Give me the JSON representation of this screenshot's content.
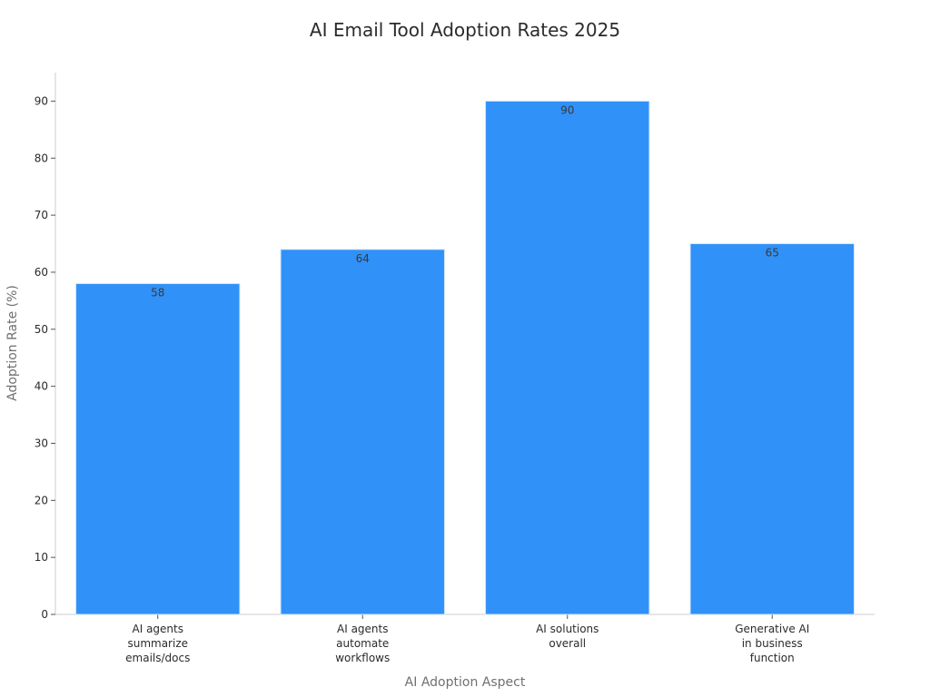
{
  "chart_data": {
    "type": "bar",
    "title": "AI Email Tool Adoption Rates 2025",
    "xlabel": "AI Adoption Aspect",
    "ylabel": "Adoption Rate (%)",
    "categories": [
      [
        "AI agents",
        "summarize",
        "emails/docs"
      ],
      [
        "AI agents",
        "automate",
        "workflows"
      ],
      [
        "AI solutions",
        "overall"
      ],
      [
        "Generative AI",
        "in business",
        "function"
      ]
    ],
    "values": [
      58,
      64,
      90,
      65
    ],
    "data_labels": [
      "58",
      "64",
      "90",
      "65"
    ],
    "ylim": [
      0,
      95
    ],
    "yticks": [
      0,
      10,
      20,
      30,
      40,
      50,
      60,
      70,
      80,
      90
    ],
    "grid": false,
    "legend": "none",
    "bar_color": "#3091f8",
    "bar_edge_color": "#cfe3fb",
    "axis_color": "#cccccc"
  }
}
